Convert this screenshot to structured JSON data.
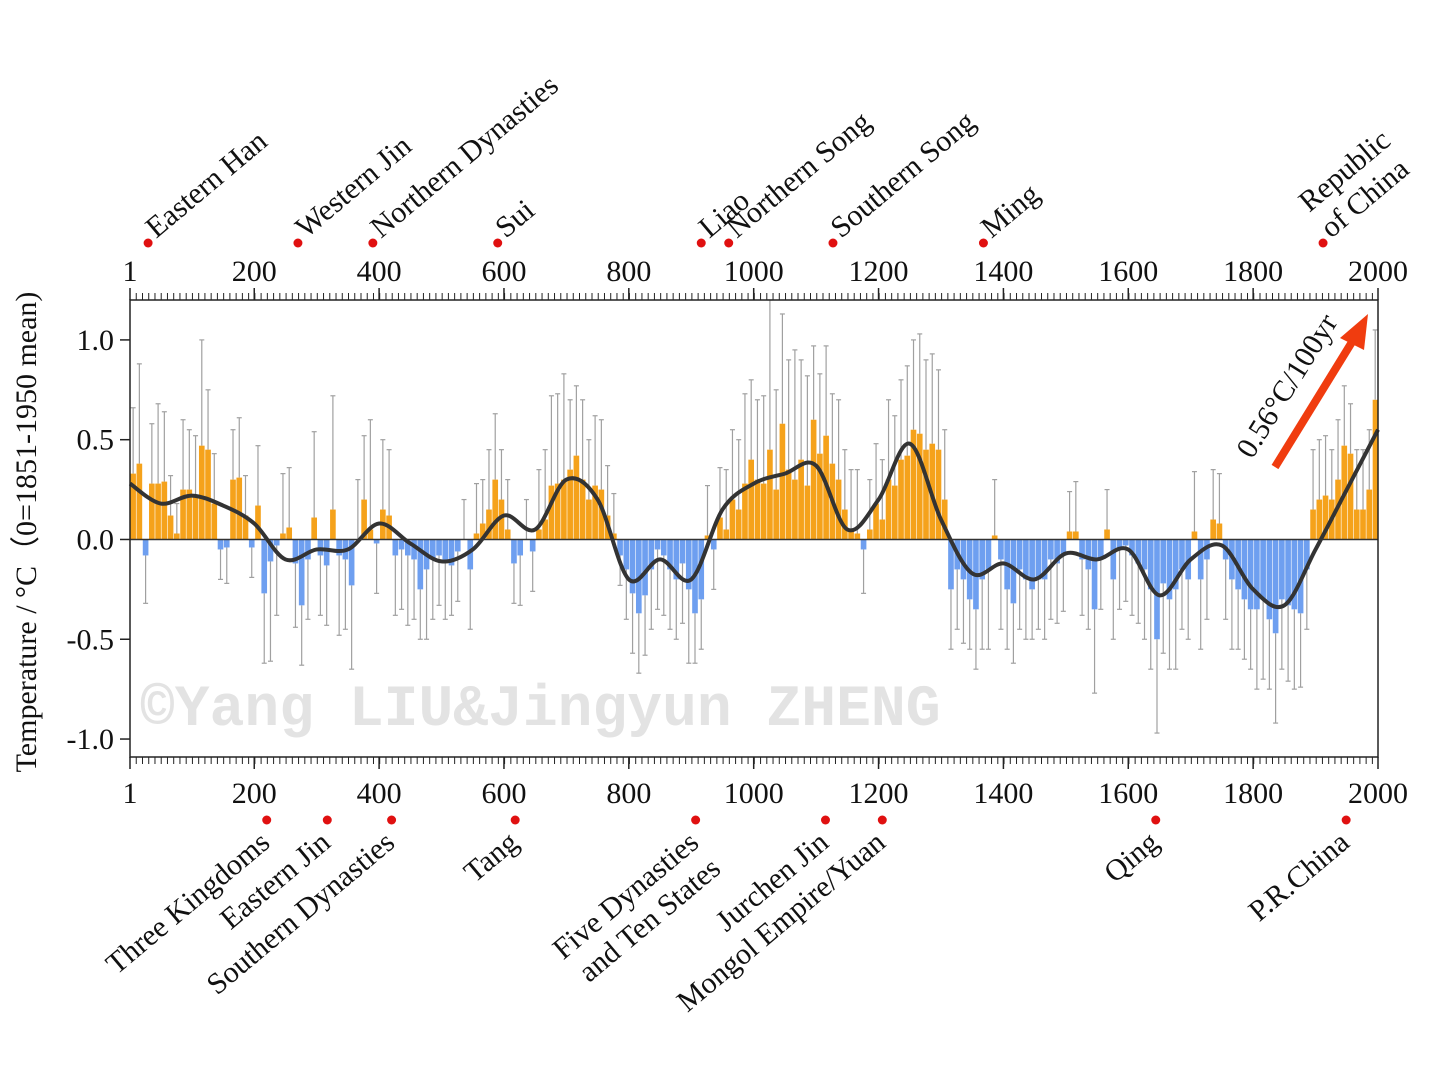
{
  "chart_data": {
    "type": "bar",
    "ylabel": "Temperature / °C（0=1851-1950 mean)",
    "watermark": "©Yang LIU&Jingyun ZHENG",
    "annotation": "0.56°C/100yr",
    "annotation_color": "#f03c0f",
    "positive_color": "#f5a21b",
    "negative_color": "#6e9ff0",
    "error_color": "#a0a0a0",
    "xlim": [
      1,
      2000
    ],
    "ylim": [
      -1.09,
      1.2
    ],
    "xticks": [
      1,
      200,
      400,
      600,
      800,
      1000,
      1200,
      1400,
      1600,
      1800,
      2000
    ],
    "yticks": [
      {
        "value": -1,
        "label": "-1.0"
      },
      -0.5,
      {
        "value": 0,
        "label": "0.0"
      },
      0.5,
      {
        "value": 1,
        "label": "1.0"
      }
    ],
    "x": [
      1,
      11,
      21,
      31,
      41,
      51,
      61,
      71,
      81,
      91,
      101,
      111,
      121,
      131,
      141,
      151,
      161,
      171,
      181,
      191,
      201,
      211,
      221,
      231,
      241,
      251,
      261,
      271,
      281,
      291,
      301,
      311,
      321,
      331,
      341,
      351,
      361,
      371,
      381,
      391,
      401,
      411,
      421,
      431,
      441,
      451,
      461,
      471,
      481,
      491,
      501,
      511,
      521,
      531,
      541,
      551,
      561,
      571,
      581,
      591,
      601,
      611,
      621,
      631,
      641,
      651,
      661,
      671,
      681,
      691,
      701,
      711,
      721,
      731,
      741,
      751,
      761,
      771,
      781,
      791,
      801,
      811,
      821,
      831,
      841,
      851,
      861,
      871,
      881,
      891,
      901,
      911,
      921,
      931,
      941,
      951,
      961,
      971,
      981,
      991,
      1001,
      1011,
      1021,
      1031,
      1041,
      1051,
      1061,
      1071,
      1081,
      1091,
      1101,
      1111,
      1121,
      1131,
      1141,
      1151,
      1161,
      1171,
      1181,
      1191,
      1201,
      1211,
      1221,
      1231,
      1241,
      1251,
      1261,
      1271,
      1281,
      1291,
      1301,
      1311,
      1321,
      1331,
      1341,
      1351,
      1361,
      1371,
      1381,
      1391,
      1401,
      1411,
      1421,
      1431,
      1441,
      1451,
      1461,
      1471,
      1481,
      1491,
      1501,
      1511,
      1521,
      1531,
      1541,
      1551,
      1561,
      1571,
      1581,
      1591,
      1601,
      1611,
      1621,
      1631,
      1641,
      1651,
      1661,
      1671,
      1681,
      1691,
      1701,
      1711,
      1721,
      1731,
      1741,
      1751,
      1761,
      1771,
      1781,
      1791,
      1801,
      1811,
      1821,
      1831,
      1841,
      1851,
      1861,
      1871,
      1881,
      1891,
      1901,
      1911,
      1921,
      1931,
      1941,
      1951,
      1961,
      1971,
      1981,
      1991
    ],
    "values": [
      0.33,
      0.38,
      -0.08,
      0.28,
      0.28,
      0.29,
      0.12,
      0.03,
      0.25,
      0.25,
      0.22,
      0.47,
      0.45,
      0.18,
      -0.05,
      -0.04,
      0.3,
      0.31,
      0.12,
      -0.04,
      0.17,
      -0.27,
      -0.11,
      -0.03,
      0.03,
      0.06,
      -0.12,
      -0.33,
      -0.1,
      0.11,
      -0.08,
      -0.13,
      0.15,
      -0.08,
      -0.1,
      -0.23,
      0.0,
      0.2,
      0.05,
      -0.02,
      0.15,
      0.12,
      -0.08,
      -0.05,
      -0.08,
      -0.1,
      -0.25,
      -0.15,
      -0.1,
      -0.08,
      -0.1,
      -0.13,
      -0.06,
      0.0,
      -0.15,
      0.03,
      0.08,
      0.15,
      0.3,
      0.2,
      0.05,
      -0.12,
      -0.08,
      0.0,
      -0.06,
      0.05,
      0.1,
      0.27,
      0.28,
      0.3,
      0.35,
      0.42,
      0.3,
      0.2,
      0.27,
      0.25,
      0.12,
      0.03,
      -0.08,
      -0.15,
      -0.27,
      -0.37,
      -0.28,
      -0.15,
      -0.05,
      -0.08,
      -0.15,
      -0.2,
      -0.12,
      -0.25,
      -0.37,
      -0.3,
      0.02,
      -0.05,
      0.11,
      0.05,
      0.2,
      0.15,
      0.28,
      0.4,
      0.3,
      0.28,
      0.45,
      0.25,
      0.58,
      0.35,
      0.3,
      0.4,
      0.27,
      0.6,
      0.43,
      0.52,
      0.38,
      0.3,
      0.15,
      0.05,
      0.03,
      -0.05,
      0.05,
      0.18,
      0.1,
      0.3,
      0.27,
      0.4,
      0.42,
      0.55,
      0.53,
      0.45,
      0.48,
      0.45,
      0.2,
      -0.25,
      -0.15,
      -0.2,
      -0.3,
      -0.35,
      -0.2,
      -0.15,
      0.02,
      -0.1,
      -0.25,
      -0.32,
      -0.15,
      -0.2,
      -0.25,
      -0.2,
      -0.2,
      -0.1,
      -0.12,
      -0.08,
      0.04,
      0.04,
      -0.1,
      -0.15,
      -0.35,
      -0.1,
      0.05,
      -0.2,
      -0.05,
      -0.03,
      -0.08,
      -0.12,
      -0.15,
      -0.25,
      -0.5,
      -0.22,
      -0.3,
      -0.25,
      -0.15,
      -0.2,
      0.04,
      -0.2,
      -0.1,
      0.1,
      0.08,
      -0.1,
      -0.2,
      -0.25,
      -0.3,
      -0.35,
      -0.35,
      -0.3,
      -0.4,
      -0.47,
      -0.3,
      -0.33,
      -0.35,
      -0.37,
      -0.15,
      0.15,
      0.2,
      0.22,
      0.2,
      0.3,
      0.47,
      0.43,
      0.15,
      0.15,
      0.25,
      0.7
    ],
    "errors": [
      0.33,
      0.5,
      0.24,
      0.3,
      0.4,
      0.35,
      0.2,
      0.15,
      0.35,
      0.3,
      0.3,
      0.53,
      0.3,
      0.25,
      0.15,
      0.18,
      0.25,
      0.3,
      0.2,
      0.15,
      0.3,
      0.35,
      0.5,
      0.35,
      0.3,
      0.3,
      0.32,
      0.3,
      0.3,
      0.43,
      0.3,
      0.3,
      0.57,
      0.4,
      0.35,
      0.42,
      0.3,
      0.32,
      0.55,
      0.25,
      0.35,
      0.33,
      0.3,
      0.3,
      0.35,
      0.3,
      0.25,
      0.35,
      0.3,
      0.25,
      0.3,
      0.25,
      0.25,
      0.2,
      0.3,
      0.25,
      0.22,
      0.3,
      0.33,
      0.25,
      0.25,
      0.2,
      0.25,
      0.2,
      0.2,
      0.3,
      0.35,
      0.45,
      0.45,
      0.53,
      0.35,
      0.35,
      0.4,
      0.3,
      0.35,
      0.35,
      0.25,
      0.2,
      0.15,
      0.25,
      0.3,
      0.3,
      0.3,
      0.3,
      0.3,
      0.3,
      0.3,
      0.3,
      0.3,
      0.37,
      0.25,
      0.25,
      0.25,
      0.2,
      0.25,
      0.3,
      0.35,
      0.35,
      0.45,
      0.4,
      0.4,
      0.44,
      0.75,
      0.5,
      0.55,
      0.55,
      0.65,
      0.5,
      0.55,
      0.37,
      0.4,
      0.45,
      0.35,
      0.4,
      0.3,
      0.3,
      0.32,
      0.22,
      0.25,
      0.3,
      0.3,
      0.4,
      0.35,
      0.4,
      0.45,
      0.45,
      0.5,
      0.45,
      0.45,
      0.4,
      0.35,
      0.3,
      0.3,
      0.32,
      0.25,
      0.3,
      0.35,
      0.4,
      0.28,
      0.35,
      0.3,
      0.3,
      0.3,
      0.3,
      0.25,
      0.25,
      0.3,
      0.3,
      0.3,
      0.28,
      0.2,
      0.25,
      0.28,
      0.3,
      0.42,
      0.25,
      0.2,
      0.3,
      0.3,
      0.28,
      0.3,
      0.3,
      0.35,
      0.4,
      0.47,
      0.35,
      0.35,
      0.4,
      0.3,
      0.3,
      0.3,
      0.35,
      0.3,
      0.25,
      0.25,
      0.3,
      0.35,
      0.3,
      0.3,
      0.3,
      0.4,
      0.4,
      0.35,
      0.45,
      0.35,
      0.38,
      0.4,
      0.37,
      0.3,
      0.3,
      0.3,
      0.3,
      0.25,
      0.3,
      0.3,
      0.25,
      0.3,
      0.3,
      0.3,
      0.35
    ],
    "smooth": {
      "color": "#333333",
      "x": [
        1,
        50,
        100,
        150,
        200,
        250,
        300,
        350,
        400,
        450,
        500,
        550,
        600,
        650,
        700,
        750,
        800,
        850,
        900,
        950,
        1000,
        1050,
        1100,
        1150,
        1200,
        1250,
        1300,
        1350,
        1400,
        1450,
        1500,
        1550,
        1600,
        1650,
        1700,
        1750,
        1800,
        1850,
        1900,
        1950,
        2000
      ],
      "values": [
        0.28,
        0.18,
        0.22,
        0.17,
        0.08,
        -0.1,
        -0.05,
        -0.05,
        0.08,
        -0.02,
        -0.11,
        -0.05,
        0.12,
        0.05,
        0.3,
        0.2,
        -0.2,
        -0.1,
        -0.2,
        0.15,
        0.28,
        0.33,
        0.37,
        0.05,
        0.2,
        0.48,
        0.1,
        -0.17,
        -0.12,
        -0.2,
        -0.07,
        -0.1,
        -0.05,
        -0.28,
        -0.1,
        -0.03,
        -0.25,
        -0.33,
        -0.05,
        0.25,
        0.55
      ]
    },
    "top_periods": [
      {
        "lines": [
          "Eastern Han"
        ],
        "year": 30
      },
      {
        "lines": [
          "Western Jin"
        ],
        "year": 270
      },
      {
        "lines": [
          "Northern Dynasties"
        ],
        "year": 390
      },
      {
        "lines": [
          "Sui"
        ],
        "year": 590
      },
      {
        "lines": [
          "Liao"
        ],
        "year": 916
      },
      {
        "lines": [
          "Northern Song"
        ],
        "year": 960
      },
      {
        "lines": [
          "Southern Song"
        ],
        "year": 1127
      },
      {
        "lines": [
          "Ming"
        ],
        "year": 1368
      },
      {
        "lines": [
          "Republic",
          "of China"
        ],
        "year": 1912
      }
    ],
    "bottom_periods": [
      {
        "lines": [
          "Three Kingdoms"
        ],
        "year": 220
      },
      {
        "lines": [
          "Eastern Jin"
        ],
        "year": 317
      },
      {
        "lines": [
          "Southern Dynasties"
        ],
        "year": 420
      },
      {
        "lines": [
          "Tang"
        ],
        "year": 618
      },
      {
        "lines": [
          "Five Dynasties",
          "and Ten States"
        ],
        "year": 907
      },
      {
        "lines": [
          "Jurchen Jin"
        ],
        "year": 1115
      },
      {
        "lines": [
          "Mongol Empire/Yuan"
        ],
        "year": 1206
      },
      {
        "lines": [
          "Qing"
        ],
        "year": 1644
      },
      {
        "lines": [
          "P.R.China"
        ],
        "year": 1949
      }
    ]
  }
}
